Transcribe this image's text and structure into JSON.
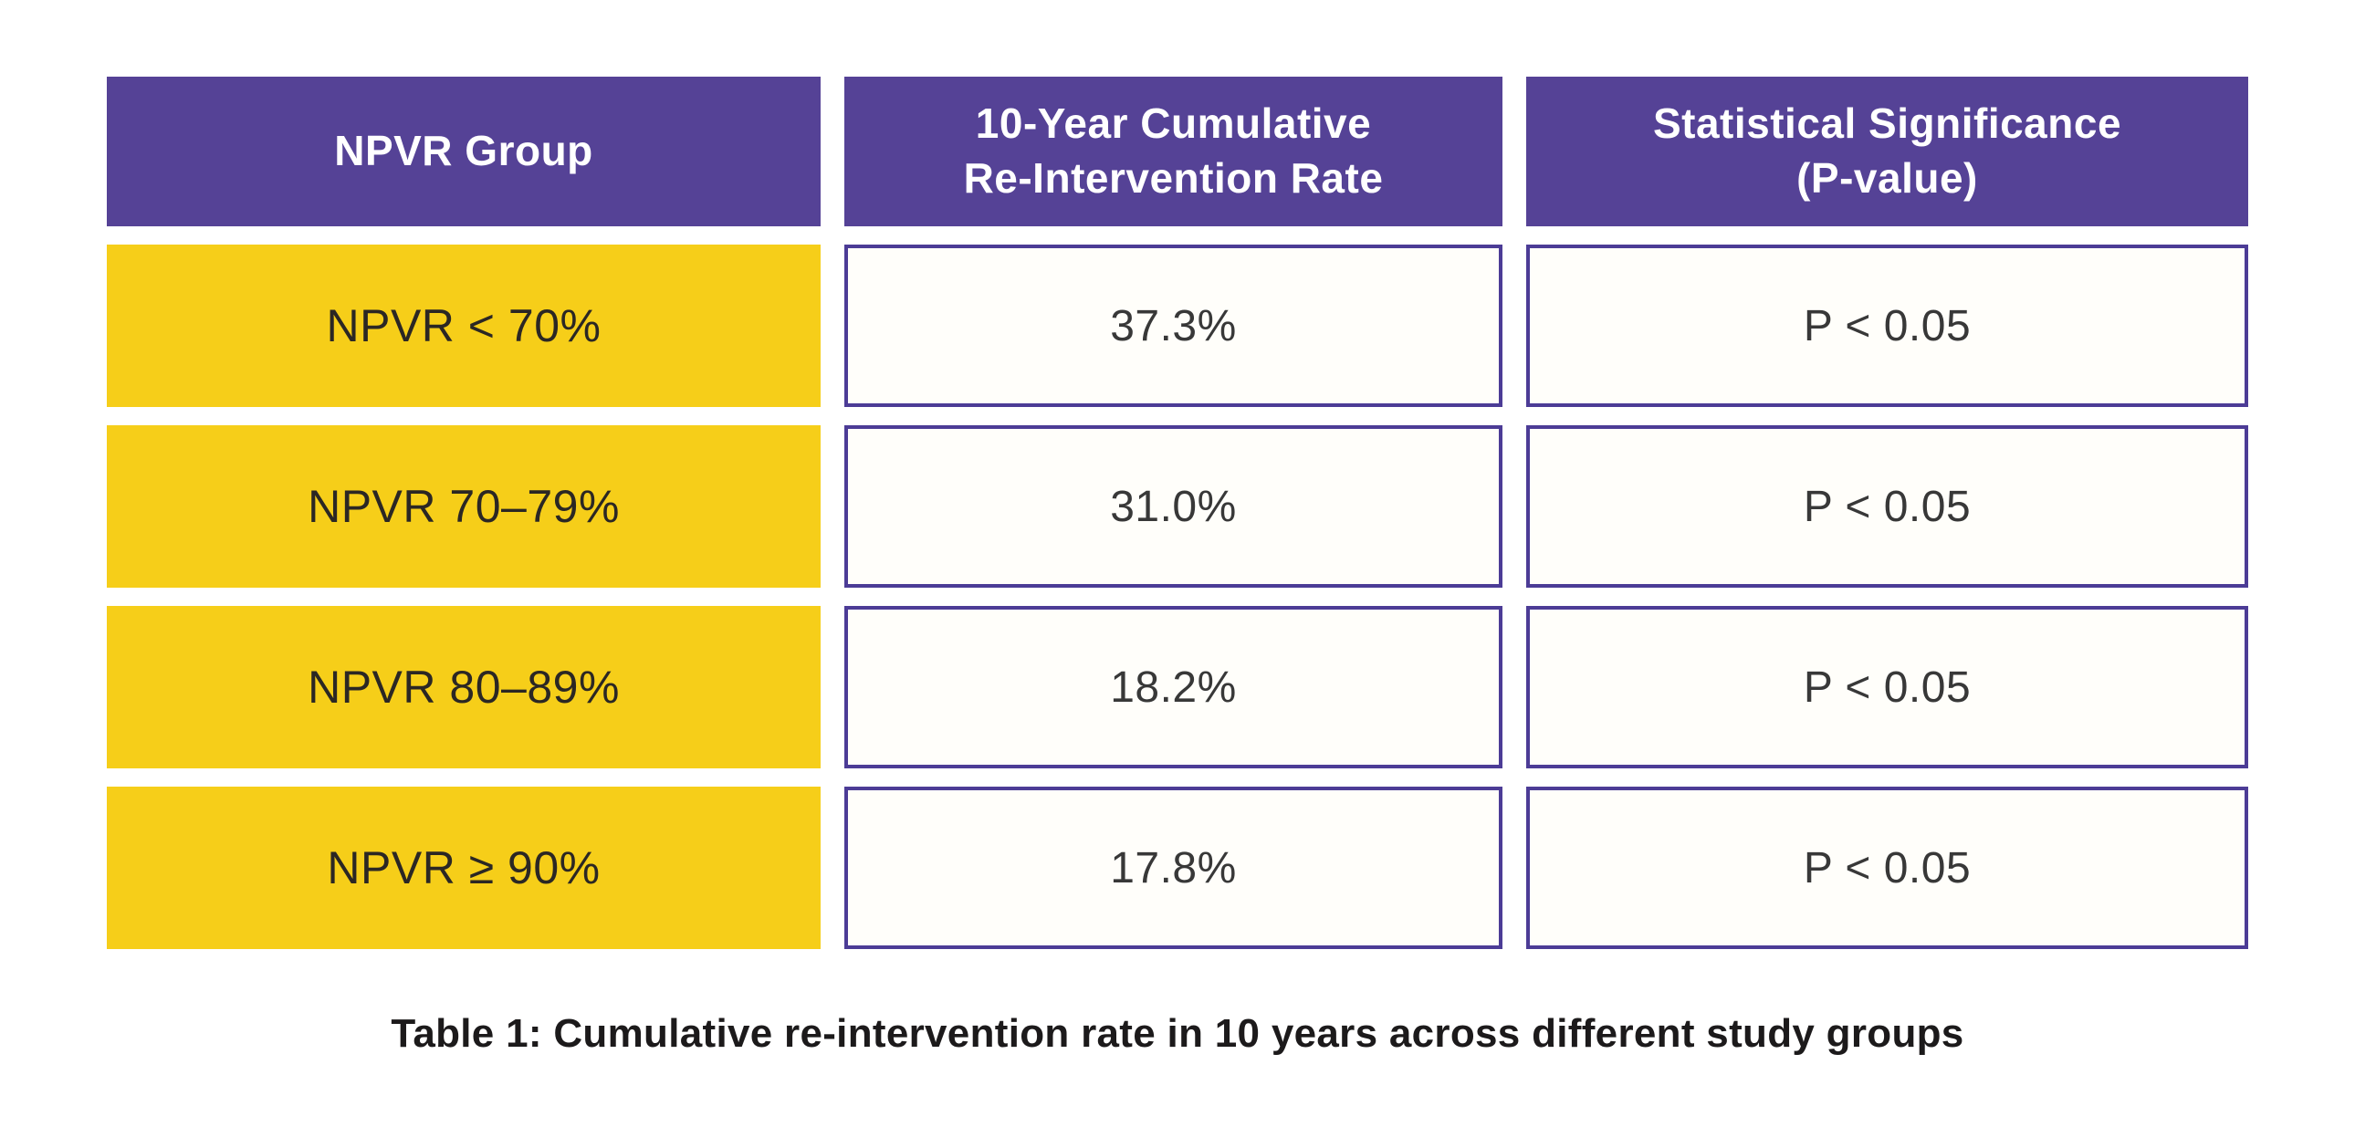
{
  "table": {
    "headers": [
      {
        "label": "NPVR Group"
      },
      {
        "label": "10-Year Cumulative\nRe-Intervention Rate"
      },
      {
        "label": "Statistical Significance\n(P-value)"
      }
    ],
    "rows": [
      {
        "group": "NPVR < 70%",
        "rate": "37.3%",
        "significance": "P < 0.05"
      },
      {
        "group": "NPVR 70–79%",
        "rate": "31.0%",
        "significance": "P < 0.05"
      },
      {
        "group": "NPVR 80–89%",
        "rate": "18.2%",
        "significance": "P < 0.05"
      },
      {
        "group": "NPVR ≥ 90%",
        "rate": "17.8%",
        "significance": "P < 0.05"
      }
    ],
    "caption": "Table 1: Cumulative re-intervention rate in 10 years across different study groups"
  },
  "colors": {
    "header_purple": "#554296",
    "cell_border_purple": "#4C3C96",
    "group_yellow": "#F6CE19",
    "cell_background": "#FFFEFA",
    "header_text": "#FFFFFF",
    "body_text": "#383838",
    "group_text": "#2B2724",
    "caption_text": "#1C1A1B",
    "page_background": "#FFFFFF"
  },
  "chart_data": {
    "type": "table",
    "title": "Table 1: Cumulative re-intervention rate in 10 years across different study groups",
    "columns": [
      "NPVR Group",
      "10-Year Cumulative Re-Intervention Rate",
      "Statistical Significance (P-value)"
    ],
    "rows": [
      [
        "NPVR < 70%",
        "37.3%",
        "P < 0.05"
      ],
      [
        "NPVR 70–79%",
        "31.0%",
        "P < 0.05"
      ],
      [
        "NPVR 80–89%",
        "18.2%",
        "P < 0.05"
      ],
      [
        "NPVR ≥ 90%",
        "17.8%",
        "P < 0.05"
      ]
    ],
    "rates_numeric_percent": [
      37.3,
      31.0,
      18.2,
      17.8
    ],
    "layout_hints": {
      "header_fill": "purple",
      "group_column_fill": "yellow",
      "value_cells": "white with purple border",
      "caption_position": "bottom-center"
    }
  }
}
